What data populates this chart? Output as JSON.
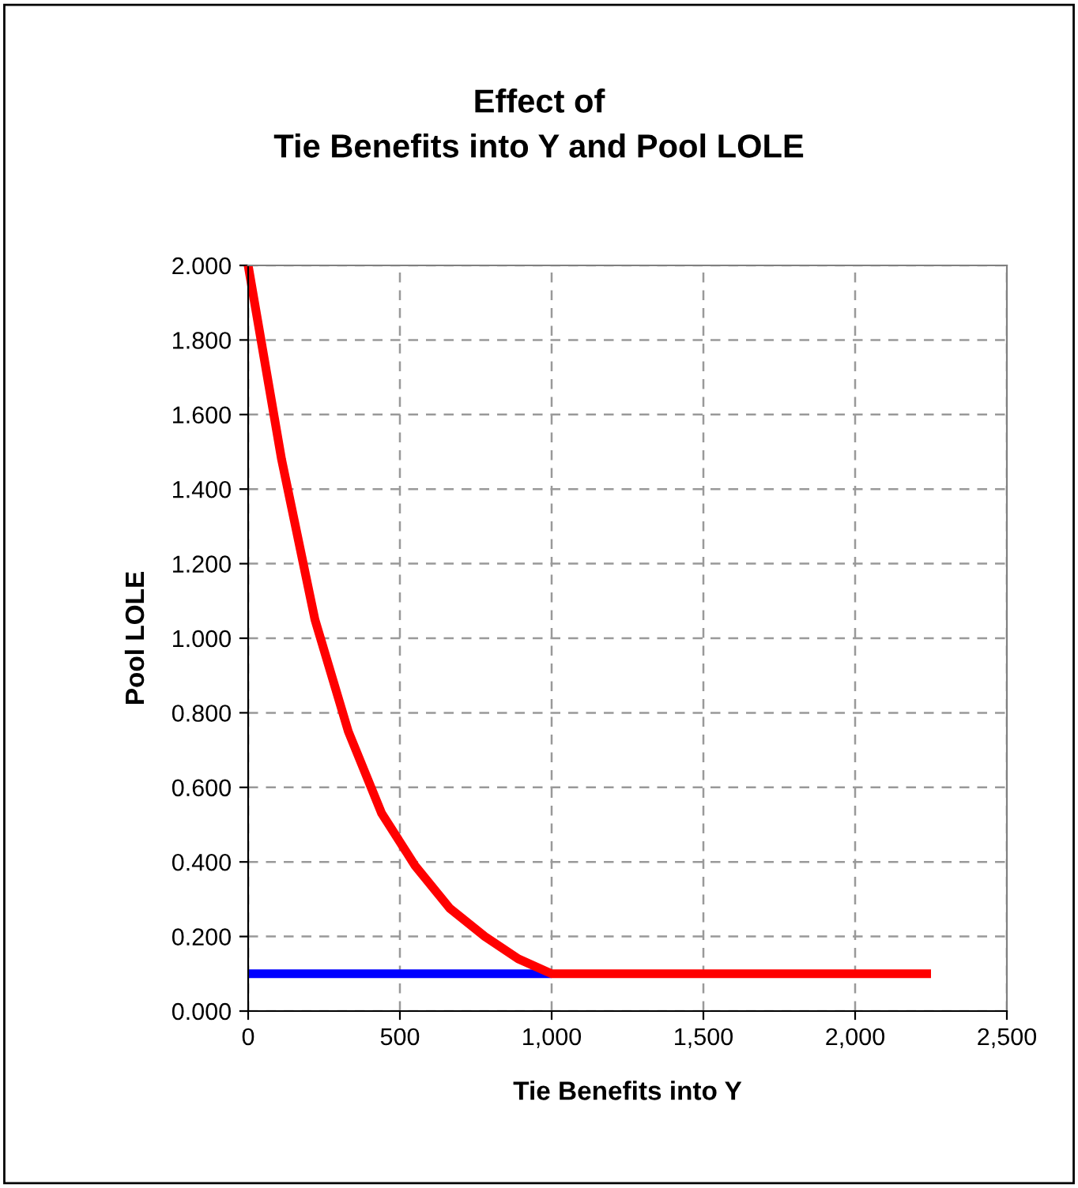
{
  "chart_data": {
    "type": "line",
    "title": "Effect of\nTie Benefits into Y and Pool LOLE",
    "xlabel": "Tie Benefits into Y",
    "ylabel": "Pool LOLE",
    "series": [
      {
        "color": "#0000ff",
        "x": [
          0,
          1000
        ],
        "values": [
          0.1,
          0.1
        ]
      },
      {
        "color": "#ff0000",
        "x": [
          0,
          110,
          220,
          330,
          440,
          550,
          665,
          780,
          890,
          1000,
          2250
        ],
        "values": [
          2.0,
          1.48,
          1.05,
          0.75,
          0.53,
          0.39,
          0.275,
          0.2,
          0.14,
          0.1,
          0.1
        ]
      }
    ],
    "xlim": [
      0,
      2500
    ],
    "xticks": [
      {
        "value": 0,
        "label": "0"
      },
      {
        "value": 500,
        "label": "500"
      },
      {
        "value": 1000,
        "label": "1,000"
      },
      {
        "value": 1500,
        "label": "1,500"
      },
      {
        "value": 2000,
        "label": "2,000"
      },
      {
        "value": 2500,
        "label": "2,500"
      }
    ],
    "ylim": [
      0,
      2
    ],
    "yticks": [
      {
        "value": 0,
        "label": "0.000"
      },
      {
        "value": 0.2,
        "label": "0.200"
      },
      {
        "value": 0.4,
        "label": "0.400"
      },
      {
        "value": 0.6,
        "label": "0.600"
      },
      {
        "value": 0.8,
        "label": "0.800"
      },
      {
        "value": 1.0,
        "label": "1.000"
      },
      {
        "value": 1.2,
        "label": "1.200"
      },
      {
        "value": 1.4,
        "label": "1.400"
      },
      {
        "value": 1.6,
        "label": "1.600"
      },
      {
        "value": 1.8,
        "label": "1.800"
      },
      {
        "value": 2.0,
        "label": "2.000"
      }
    ],
    "grid": true,
    "line_style": "solid"
  }
}
